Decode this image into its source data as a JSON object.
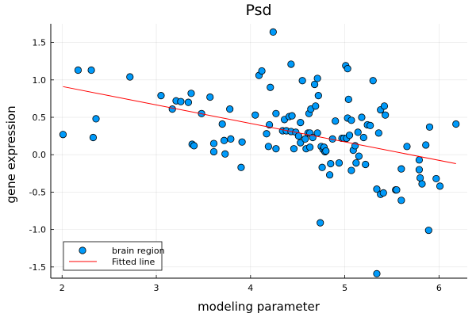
{
  "chart_data": {
    "type": "scatter",
    "title": "Psd",
    "xlabel": "modeling parameter",
    "ylabel": "gene expression",
    "xlim": [
      1.88,
      6.3
    ],
    "ylim": [
      -1.65,
      1.75
    ],
    "xticks": [
      2,
      3,
      4,
      5,
      6
    ],
    "yticks": [
      -1.5,
      -1.0,
      -0.5,
      0.0,
      0.5,
      1.0,
      1.5
    ],
    "xtick_labels": [
      "2",
      "3",
      "4",
      "5",
      "6"
    ],
    "ytick_labels": [
      "-1.5",
      "-1.0",
      "-0.5",
      "0.0",
      "0.5",
      "1.0",
      "1.5"
    ],
    "grid": true,
    "legend_position": "bottom-left",
    "series": [
      {
        "name": "brain region",
        "kind": "scatter",
        "color": "#009AFA",
        "points": [
          [
            2.01,
            0.27
          ],
          [
            2.17,
            1.13
          ],
          [
            2.31,
            1.13
          ],
          [
            2.33,
            0.23
          ],
          [
            2.36,
            0.48
          ],
          [
            2.72,
            1.04
          ],
          [
            3.05,
            0.79
          ],
          [
            3.17,
            0.61
          ],
          [
            3.21,
            0.72
          ],
          [
            3.26,
            0.71
          ],
          [
            3.34,
            0.7
          ],
          [
            3.37,
            0.82
          ],
          [
            3.38,
            0.14
          ],
          [
            3.4,
            0.12
          ],
          [
            3.48,
            0.55
          ],
          [
            3.57,
            0.77
          ],
          [
            3.61,
            0.04
          ],
          [
            3.61,
            0.15
          ],
          [
            3.7,
            0.41
          ],
          [
            3.72,
            0.19
          ],
          [
            3.73,
            0.01
          ],
          [
            3.78,
            0.61
          ],
          [
            3.79,
            0.21
          ],
          [
            3.9,
            -0.17
          ],
          [
            3.91,
            0.17
          ],
          [
            4.05,
            0.53
          ],
          [
            4.09,
            1.06
          ],
          [
            4.12,
            1.12
          ],
          [
            4.17,
            0.28
          ],
          [
            4.19,
            0.11
          ],
          [
            4.2,
            0.4
          ],
          [
            4.21,
            0.9
          ],
          [
            4.24,
            1.64
          ],
          [
            4.27,
            0.55
          ],
          [
            4.27,
            0.08
          ],
          [
            4.34,
            0.32
          ],
          [
            4.36,
            0.47
          ],
          [
            4.38,
            0.32
          ],
          [
            4.41,
            0.51
          ],
          [
            4.43,
            1.21
          ],
          [
            4.43,
            0.31
          ],
          [
            4.44,
            0.52
          ],
          [
            4.46,
            0.08
          ],
          [
            4.48,
            0.3
          ],
          [
            4.51,
            0.25
          ],
          [
            4.53,
            0.43
          ],
          [
            4.53,
            0.16
          ],
          [
            4.55,
            0.99
          ],
          [
            4.58,
            0.21
          ],
          [
            4.59,
            0.08
          ],
          [
            4.61,
            0.29
          ],
          [
            4.62,
            0.55
          ],
          [
            4.63,
            0.29
          ],
          [
            4.63,
            0.1
          ],
          [
            4.64,
            0.61
          ],
          [
            4.66,
            0.23
          ],
          [
            4.68,
            0.94
          ],
          [
            4.69,
            0.65
          ],
          [
            4.71,
            1.02
          ],
          [
            4.71,
            0.29
          ],
          [
            4.72,
            0.79
          ],
          [
            4.74,
            -0.91
          ],
          [
            4.75,
            0.11
          ],
          [
            4.76,
            -0.17
          ],
          [
            4.77,
            0.07
          ],
          [
            4.78,
            0.1
          ],
          [
            4.79,
            0.04
          ],
          [
            4.8,
            0.05
          ],
          [
            4.84,
            -0.27
          ],
          [
            4.85,
            -0.12
          ],
          [
            4.87,
            0.21
          ],
          [
            4.9,
            0.45
          ],
          [
            4.94,
            -0.11
          ],
          [
            4.97,
            0.22
          ],
          [
            4.99,
            0.22
          ],
          [
            5.01,
            1.19
          ],
          [
            5.02,
            0.22
          ],
          [
            5.03,
            1.15
          ],
          [
            5.03,
            0.49
          ],
          [
            5.04,
            0.74
          ],
          [
            5.05,
            0.26
          ],
          [
            5.07,
            0.46
          ],
          [
            5.07,
            -0.21
          ],
          [
            5.09,
            0.06
          ],
          [
            5.11,
            0.12
          ],
          [
            5.12,
            -0.11
          ],
          [
            5.14,
            0.3
          ],
          [
            5.15,
            -0.02
          ],
          [
            5.18,
            0.5
          ],
          [
            5.2,
            0.23
          ],
          [
            5.22,
            -0.13
          ],
          [
            5.24,
            0.4
          ],
          [
            5.27,
            0.39
          ],
          [
            5.3,
            0.99
          ],
          [
            5.34,
            -1.59
          ],
          [
            5.34,
            -0.46
          ],
          [
            5.36,
            0.29
          ],
          [
            5.38,
            0.6
          ],
          [
            5.38,
            -0.53
          ],
          [
            5.41,
            -0.51
          ],
          [
            5.42,
            0.65
          ],
          [
            5.43,
            0.53
          ],
          [
            5.54,
            -0.47
          ],
          [
            5.55,
            -0.47
          ],
          [
            5.6,
            -0.61
          ],
          [
            5.6,
            -0.19
          ],
          [
            5.66,
            0.11
          ],
          [
            5.79,
            -0.07
          ],
          [
            5.79,
            -0.2
          ],
          [
            5.8,
            -0.31
          ],
          [
            5.82,
            -0.39
          ],
          [
            5.86,
            0.13
          ],
          [
            5.89,
            -1.01
          ],
          [
            5.9,
            0.37
          ],
          [
            5.97,
            -0.32
          ],
          [
            6.01,
            -0.42
          ],
          [
            6.18,
            0.41
          ]
        ]
      },
      {
        "name": "Fitted line",
        "kind": "line",
        "color": "#FF0000",
        "x": [
          2.01,
          6.18
        ],
        "y": [
          0.91,
          -0.12
        ]
      }
    ]
  }
}
